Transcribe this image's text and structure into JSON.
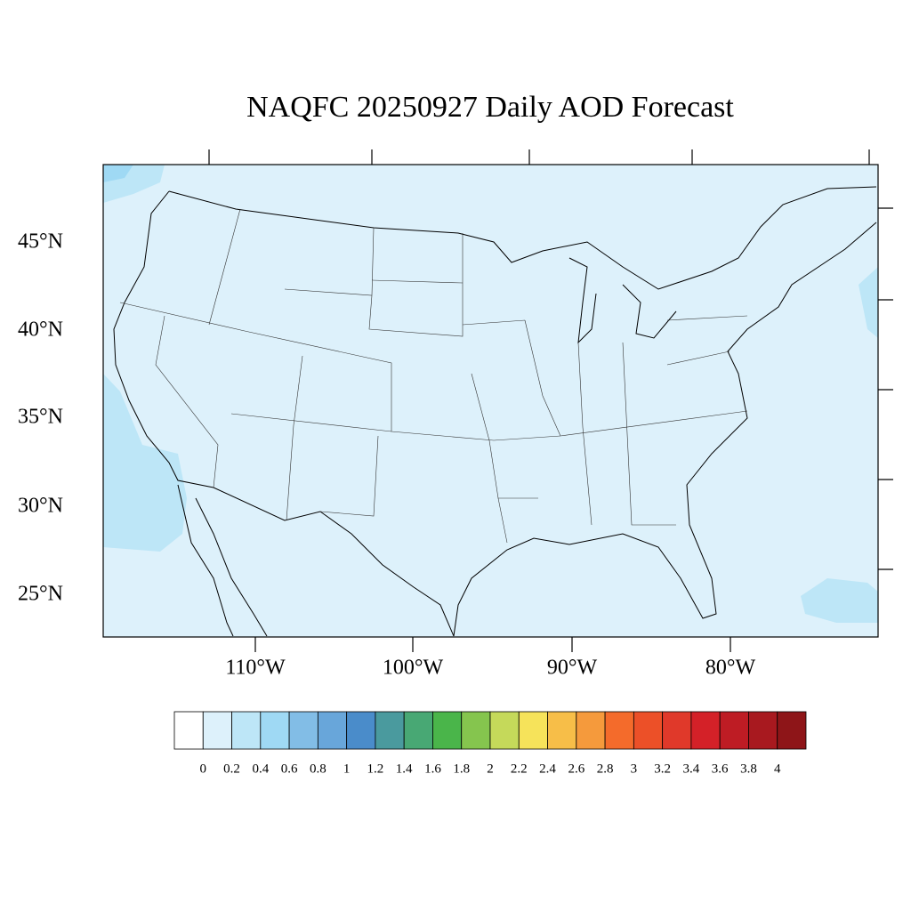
{
  "title": "NAQFC 20250927 Daily AOD Forecast",
  "map": {
    "lat_labels": [
      "45°N",
      "40°N",
      "35°N",
      "30°N",
      "25°N"
    ],
    "lon_labels": [
      "110°W",
      "100°W",
      "90°W",
      "80°W"
    ]
  },
  "colorbar": {
    "colors": [
      "#ffffff",
      "#ddf1fb",
      "#bde6f7",
      "#9fd9f4",
      "#82bde6",
      "#68a6da",
      "#4a8cca",
      "#4a9a9e",
      "#48a874",
      "#4ab54a",
      "#85c54e",
      "#c5d95a",
      "#f6e35a",
      "#f7be48",
      "#f59a3c",
      "#f46b2b",
      "#ec5028",
      "#e0392a",
      "#d42128",
      "#be1c24",
      "#a8191f",
      "#8e1518"
    ],
    "levels": [
      0,
      0.2,
      0.4,
      0.6,
      0.8,
      1,
      1.2,
      1.4,
      1.6,
      1.8,
      2,
      2.2,
      2.4,
      2.6,
      2.8,
      3,
      3.2,
      3.4,
      3.6,
      3.8,
      4
    ]
  }
}
